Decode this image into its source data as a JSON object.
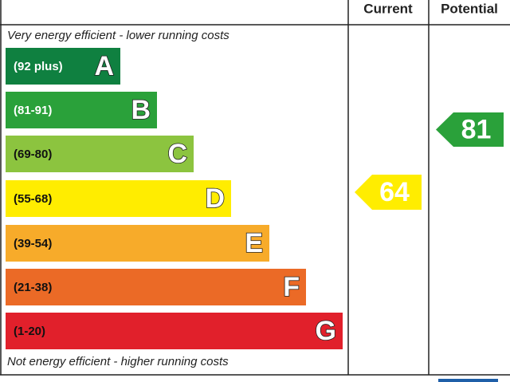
{
  "header": {
    "current": "Current",
    "potential": "Potential"
  },
  "top_note": "Very energy efficient - lower running costs",
  "bottom_note": "Not energy efficient - higher running costs",
  "bands": [
    {
      "range": "(92 plus)",
      "letter": "A",
      "color": "#0f8040",
      "text_color": "#ffffff"
    },
    {
      "range": "(81-91)",
      "letter": "B",
      "color": "#2aa13a",
      "text_color": "#ffffff"
    },
    {
      "range": "(69-80)",
      "letter": "C",
      "color": "#8cc43f",
      "text_color": "#111111"
    },
    {
      "range": "(55-68)",
      "letter": "D",
      "color": "#ffed00",
      "text_color": "#111111"
    },
    {
      "range": "(39-54)",
      "letter": "E",
      "color": "#f7ab2a",
      "text_color": "#111111"
    },
    {
      "range": "(21-38)",
      "letter": "F",
      "color": "#eb6a26",
      "text_color": "#111111"
    },
    {
      "range": "(1-20)",
      "letter": "G",
      "color": "#e1202b",
      "text_color": "#111111"
    }
  ],
  "current": {
    "value": "64",
    "color": "#ffed00"
  },
  "potential": {
    "value": "81",
    "color": "#2aa13a"
  }
}
